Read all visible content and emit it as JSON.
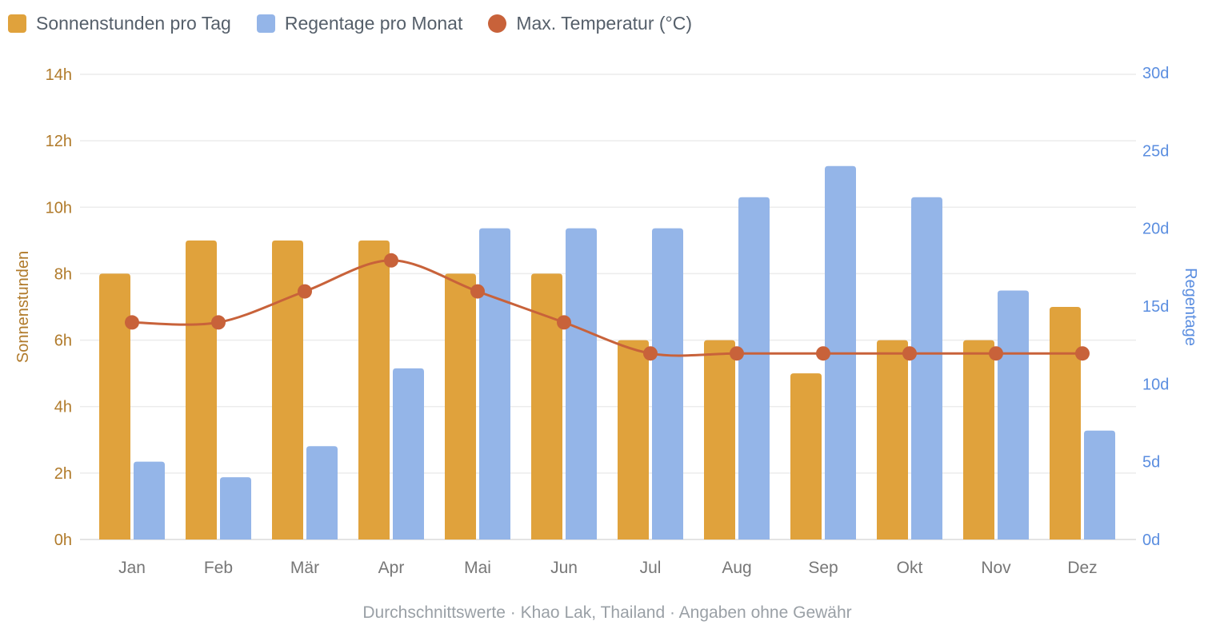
{
  "chart_data": {
    "type": "bar",
    "categories": [
      "Jan",
      "Feb",
      "Mär",
      "Apr",
      "Mai",
      "Jun",
      "Jul",
      "Aug",
      "Sep",
      "Okt",
      "Nov",
      "Dez"
    ],
    "series": [
      {
        "name": "Sonnenstunden pro Tag",
        "type": "bar",
        "axis": "left",
        "color": "#e0a23c",
        "values": [
          8,
          9,
          9,
          9,
          8,
          8,
          6,
          6,
          5,
          6,
          6,
          7
        ]
      },
      {
        "name": "Regentage pro Monat",
        "type": "bar",
        "axis": "right",
        "color": "#94b5e8",
        "values": [
          5,
          4,
          6,
          11,
          20,
          20,
          20,
          22,
          24,
          22,
          16,
          7
        ]
      },
      {
        "name": "Max. Temperatur (°C)",
        "type": "line",
        "axis": "hidden",
        "color": "#c8623a",
        "values": [
          32,
          32,
          33,
          34,
          33,
          32,
          31,
          31,
          31,
          31,
          31,
          31
        ]
      }
    ],
    "left_axis": {
      "label": "Sonnenstunden",
      "range": [
        0,
        14
      ],
      "ticks": [
        "0h",
        "2h",
        "4h",
        "6h",
        "8h",
        "10h",
        "12h",
        "14h"
      ],
      "color": "#b07a2a"
    },
    "right_axis": {
      "label": "Regentage",
      "range": [
        0,
        30
      ],
      "ticks": [
        "0d",
        "5d",
        "10d",
        "15d",
        "20d",
        "25d",
        "30d"
      ],
      "color": "#5b8ee0"
    },
    "temperature_axis_range": [
      25,
      40
    ],
    "grid": true,
    "legend": "top-left",
    "footer": "Durchschnittswerte · Khao Lak, Thailand · Angaben ohne Gewähr"
  }
}
